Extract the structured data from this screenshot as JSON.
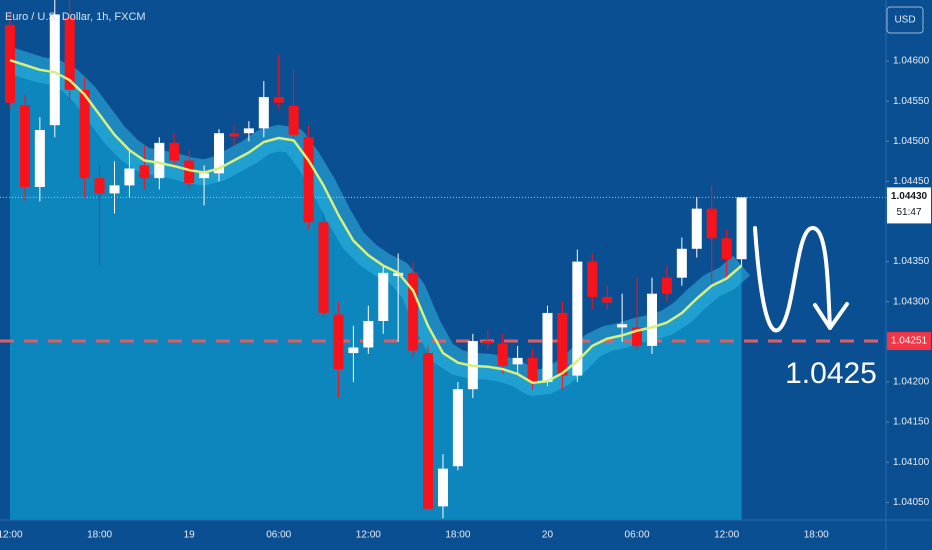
{
  "chart_data": {
    "type": "candlestick",
    "title": "Euro / U.S. Dollar, 1h, FXCM",
    "currency": "USD",
    "categories": [
      "12:00",
      null,
      null,
      null,
      null,
      null,
      "18:00",
      null,
      null,
      null,
      null,
      null,
      "19",
      null,
      null,
      null,
      null,
      null,
      "06:00",
      null,
      null,
      null,
      null,
      null,
      "12:00",
      null,
      null,
      null,
      null,
      null,
      "18:00",
      null,
      null,
      null,
      null,
      null,
      "20",
      null,
      null,
      null,
      null,
      null,
      "06:00",
      null,
      null,
      null,
      null,
      null,
      "12:00",
      null,
      null,
      null,
      null,
      null,
      "18:00",
      null,
      null,
      null,
      null
    ],
    "open": [
      1.04645,
      1.04545,
      1.04443,
      1.0452,
      1.04654,
      1.04564,
      1.04454,
      1.04435,
      1.04445,
      1.0447,
      1.04454,
      1.04498,
      1.04476,
      1.04454,
      1.0446,
      1.0451,
      1.0451,
      1.04516,
      1.04555,
      1.04544,
      1.04505,
      1.04399,
      1.04284,
      1.04236,
      1.04243,
      1.04276,
      1.04332,
      1.04336,
      1.04236,
      1.04045,
      1.04095,
      1.04191,
      1.04251,
      1.04248,
      1.04222,
      1.0423,
      1.042,
      1.04286,
      1.04208,
      1.0435,
      1.04306,
      1.04268,
      1.04268,
      1.04245,
      1.0433,
      1.0433,
      1.04366,
      1.04416,
      1.04379,
      1.04353,
      null,
      null,
      null,
      null,
      null,
      null,
      null,
      null,
      null
    ],
    "high": [
      1.04662,
      1.04558,
      1.0453,
      1.04676,
      1.04676,
      1.0458,
      1.0447,
      1.04475,
      1.0449,
      1.04495,
      1.04505,
      1.0451,
      1.0449,
      1.0447,
      1.04515,
      1.0452,
      1.04525,
      1.04575,
      1.04608,
      1.0459,
      1.0452,
      1.0441,
      1.043,
      1.0427,
      1.04295,
      1.04345,
      1.0436,
      1.0435,
      1.04245,
      1.0411,
      1.042,
      1.0426,
      1.04265,
      1.0426,
      1.04245,
      1.0424,
      1.04295,
      1.043,
      1.04365,
      1.0436,
      1.0432,
      1.0431,
      1.0433,
      1.0433,
      1.04345,
      1.0438,
      1.0443,
      1.04445,
      1.0439,
      1.0443,
      null,
      null,
      null,
      null,
      null,
      null,
      null,
      null,
      null
    ],
    "low": [
      1.0454,
      1.04426,
      1.04425,
      1.04505,
      1.0455,
      1.0443,
      1.04345,
      1.0441,
      1.0443,
      1.0444,
      1.0444,
      1.0447,
      1.0444,
      1.0442,
      1.0445,
      1.04495,
      1.045,
      1.04505,
      1.0454,
      1.045,
      1.0439,
      1.0428,
      1.0418,
      1.042,
      1.04235,
      1.0426,
      1.0425,
      1.0423,
      1.04042,
      1.0403,
      1.0409,
      1.0418,
      1.0424,
      1.0421,
      1.0421,
      1.0419,
      1.04195,
      1.0419,
      1.042,
      1.0429,
      1.0429,
      1.0425,
      1.0424,
      1.04235,
      1.043,
      1.0432,
      1.04355,
      1.0432,
      1.0433,
      1.04345,
      null,
      null,
      null,
      null,
      null,
      null,
      null,
      null,
      null
    ],
    "close": [
      1.04548,
      1.04443,
      1.04514,
      1.04658,
      1.04564,
      1.04454,
      1.04435,
      1.04445,
      1.04466,
      1.04454,
      1.04498,
      1.04476,
      1.04448,
      1.0446,
      1.0451,
      1.04506,
      1.04516,
      1.04555,
      1.04548,
      1.04508,
      1.04399,
      1.04286,
      1.04216,
      1.04243,
      1.04276,
      1.04336,
      1.04336,
      1.04239,
      1.04042,
      1.04092,
      1.04191,
      1.04251,
      1.04248,
      1.0422,
      1.0423,
      1.042,
      1.04286,
      1.04208,
      1.0435,
      1.04306,
      1.04299,
      1.04272,
      1.04245,
      1.0431,
      1.0431,
      1.04366,
      1.04416,
      1.04379,
      1.04353,
      1.0443,
      null,
      null,
      null,
      null,
      null,
      null,
      null,
      null,
      null
    ],
    "ma": [
      1.04601,
      1.04595,
      1.04589,
      1.04586,
      1.04576,
      1.04558,
      1.04533,
      1.04508,
      1.04489,
      1.04476,
      1.04473,
      1.04469,
      1.04464,
      1.04461,
      1.04466,
      1.04476,
      1.04486,
      1.04499,
      1.04504,
      1.04501,
      1.04476,
      1.04445,
      1.04408,
      1.04376,
      1.04358,
      1.04345,
      1.04336,
      1.04314,
      1.0427,
      1.04236,
      1.04224,
      1.0422,
      1.04219,
      1.04216,
      1.0421,
      1.04199,
      1.04201,
      1.04211,
      1.04226,
      1.04245,
      1.04254,
      1.04258,
      1.04264,
      1.04268,
      1.04274,
      1.04286,
      1.04304,
      1.0432,
      1.04329,
      1.04345,
      null,
      null,
      null,
      null,
      null,
      null,
      null,
      null,
      null
    ],
    "up_color": "#ffffff",
    "down_color": "#f7131c",
    "ma_color": "#d8ef7e",
    "ylim": [
      1.04028,
      1.04676
    ],
    "yticks": [
      {
        "value": 1.046,
        "label": "1.04600"
      },
      {
        "value": 1.0455,
        "label": "1.04550"
      },
      {
        "value": 1.045,
        "label": "1.04500"
      },
      {
        "value": 1.0445,
        "label": "1.04450"
      },
      {
        "value": 1.0435,
        "label": "1.04350"
      },
      {
        "value": 1.043,
        "label": "1.04300"
      },
      {
        "value": 1.042,
        "label": "1.04200"
      },
      {
        "value": 1.0415,
        "label": "1.04150"
      },
      {
        "value": 1.041,
        "label": "1.04100"
      },
      {
        "value": 1.0405,
        "label": "1.04050"
      }
    ],
    "grid": false,
    "last_price": {
      "value": 1.0443,
      "label": "1.04430"
    },
    "countdown": "51:47",
    "level": {
      "value": 1.04251,
      "label": "1.04251"
    },
    "annotation": "1.0425"
  }
}
